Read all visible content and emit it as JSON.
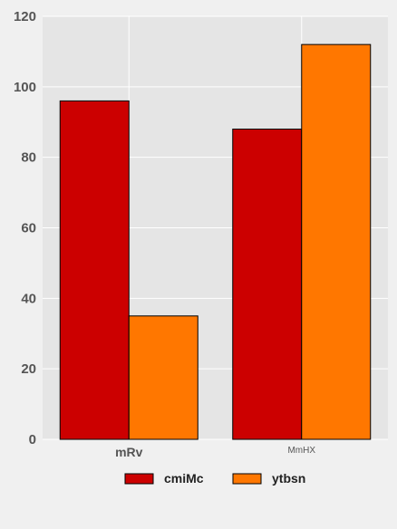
{
  "chart_data": {
    "type": "bar",
    "categories": [
      "mRv",
      "MmHX"
    ],
    "series": [
      {
        "name": "cmiMc",
        "values": [
          96,
          88
        ],
        "color": "#cc0000"
      },
      {
        "name": "ytbsn",
        "values": [
          35,
          112
        ],
        "color": "#ff7700"
      }
    ],
    "ylim": [
      0,
      120
    ],
    "yticks": [
      0,
      20,
      40,
      60,
      80,
      100,
      120
    ],
    "grid": true,
    "legend_position": "bottom"
  },
  "colors": {
    "plot_background": "#e5e5e5",
    "page_background": "#f0f0f0",
    "grid": "#ffffff",
    "bar_edge": "#000000"
  }
}
